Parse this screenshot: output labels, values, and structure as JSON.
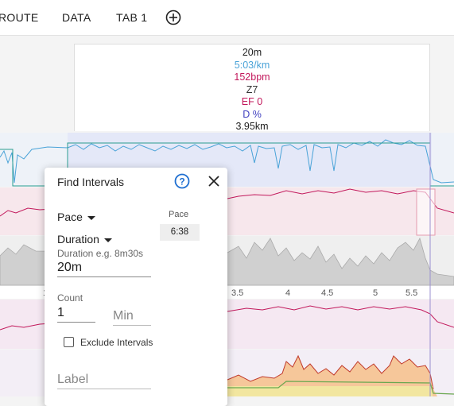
{
  "tabs": [
    "ROUTE",
    "DATA",
    "TAB 1"
  ],
  "popover": {
    "duration": "20m",
    "pace": "5:03/km",
    "heart_rate": "152bpm",
    "zone": "Z7",
    "ef": "EF 0",
    "decoupling": "D %",
    "distance": "3.95km"
  },
  "axis_ticks": [
    "1",
    "3.5",
    "4",
    "4.5",
    "5",
    "5.5"
  ],
  "dialog": {
    "title": "Find Intervals",
    "metric_select": "Pace",
    "mode_select": "Duration",
    "duration_hint": "Duration e.g. 8m30s",
    "duration_value": "20m",
    "count_label": "Count",
    "count_value": "1",
    "min_placeholder": "Min",
    "exclude_label": "Exclude Intervals",
    "label_placeholder": "Label",
    "pace_header": "Pace",
    "pace_value": "6:38"
  },
  "colors": {
    "pace": "#4aa3d8",
    "heart_rate": "#c2185b",
    "zone": "#333333",
    "decoupling": "#3f3fbf",
    "highlight": "#e9e9f7"
  }
}
